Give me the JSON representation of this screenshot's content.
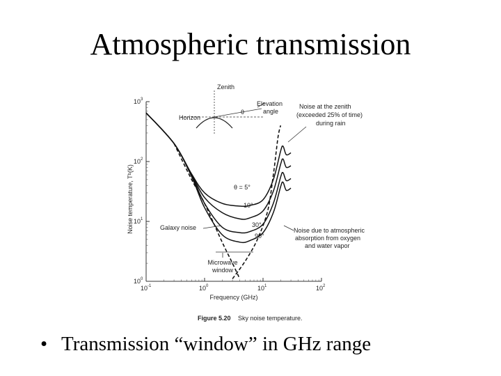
{
  "slide": {
    "title": "Atmospheric transmission",
    "bullet": "Transmission “window” in GHz range",
    "bullet_marker": "•"
  },
  "chart_data": {
    "type": "line",
    "title": "",
    "xlabel": "Frequency (GHz)",
    "ylabel": "Noise temperature, Tᵇ(K)",
    "x_scale": "log",
    "y_scale": "log",
    "xlim": [
      0.1,
      100
    ],
    "ylim": [
      1,
      1000
    ],
    "x_ticks": [
      {
        "value": 0.1,
        "base": "10",
        "exp": "-1"
      },
      {
        "value": 1,
        "base": "10",
        "exp": "0"
      },
      {
        "value": 10,
        "base": "10",
        "exp": "1"
      },
      {
        "value": 100,
        "base": "10",
        "exp": "2"
      }
    ],
    "y_ticks": [
      {
        "value": 1,
        "base": "10",
        "exp": "0"
      },
      {
        "value": 10,
        "base": "10",
        "exp": "1"
      },
      {
        "value": 100,
        "base": "10",
        "exp": "2"
      },
      {
        "value": 1000,
        "base": "10",
        "exp": "3"
      }
    ],
    "series": [
      {
        "name": "θ = 5°",
        "style": "solid",
        "x": [
          0.1,
          0.3,
          0.6,
          1.0,
          2.0,
          4.0,
          6.0,
          10.0,
          15.0,
          20.0,
          22.0,
          25.0,
          30.0
        ],
        "y": [
          650,
          200,
          62,
          30,
          20,
          18,
          18.5,
          23,
          50,
          150,
          180,
          130,
          140
        ]
      },
      {
        "name": "10°",
        "style": "solid",
        "x": [
          0.1,
          0.3,
          0.6,
          1.0,
          2.0,
          4.0,
          6.0,
          10.0,
          15.0,
          20.0,
          22.0,
          25.0,
          30.0
        ],
        "y": [
          650,
          200,
          60,
          25,
          14,
          11,
          11.5,
          15,
          32,
          90,
          110,
          80,
          85
        ]
      },
      {
        "name": "30°",
        "style": "solid",
        "x": [
          0.1,
          0.3,
          0.6,
          1.0,
          2.0,
          4.0,
          6.0,
          10.0,
          15.0,
          20.0,
          22.0,
          25.0,
          30.0
        ],
        "y": [
          650,
          200,
          58,
          20,
          8.0,
          6.5,
          6.8,
          9,
          20,
          55,
          65,
          48,
          52
        ]
      },
      {
        "name": "90°",
        "style": "solid",
        "x": [
          0.1,
          0.3,
          0.6,
          1.0,
          2.0,
          4.0,
          6.0,
          10.0,
          15.0,
          20.0,
          22.0,
          25.0,
          30.0
        ],
        "y": [
          650,
          200,
          56,
          17,
          6.0,
          4.5,
          4.8,
          6.5,
          14,
          38,
          45,
          33,
          36
        ]
      },
      {
        "name": "Galaxy noise",
        "style": "dashed",
        "x": [
          0.3,
          0.6,
          1.0,
          2.0,
          3.0,
          4.0
        ],
        "y": [
          200,
          50,
          20,
          4.5,
          2.0,
          1.1
        ]
      },
      {
        "name": "Noise due to atmospheric absorption from oxygen and water vapor",
        "style": "dashed",
        "x": [
          3.0,
          5.0,
          8.0,
          12.0,
          15.0,
          18.0,
          20.0
        ],
        "y": [
          1.1,
          2.2,
          5.0,
          15,
          60,
          250,
          400
        ]
      }
    ],
    "annotations": {
      "zenith": "Zenith",
      "elevation": "Elevation",
      "elevation2": "angle",
      "theta": "θ",
      "horizon": "Horizon",
      "rain1": "Noise at the zenith",
      "rain2": "(exceeded 25% of time)",
      "rain3": "during rain",
      "theta5": "θ = 5°",
      "deg10": "10°",
      "deg30": "30°",
      "deg90": "90°",
      "galaxy": "Galaxy noise",
      "atm1": "Noise due to atmospheric",
      "atm2": "absorption from oxygen",
      "atm3": "and water vapor",
      "mw1": "Microwave",
      "mw2": "window",
      "fig_number": "Figure 5.20",
      "fig_caption": "Sky noise temperature."
    }
  }
}
